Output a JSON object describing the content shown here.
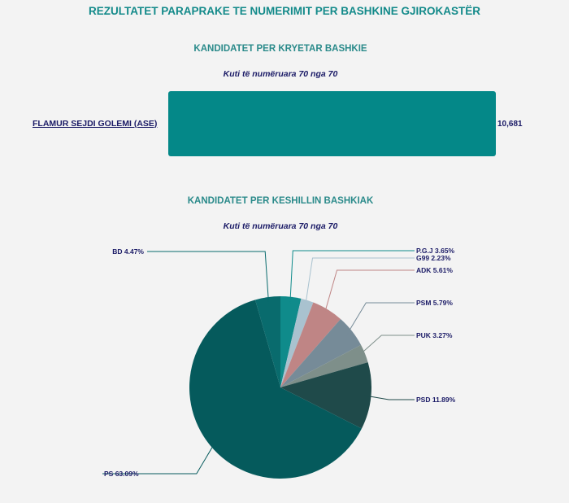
{
  "header": {
    "title": "REZULTATET PARAPRAKE TE NUMERIMIT PER BASHKINE GJIROKASTËR"
  },
  "mayor": {
    "subtitle": "KANDIDATET PER KRYETAR BASHKIE",
    "boxes": "Kuti të numëruara 70 nga 70",
    "bar_color": "#048888"
  },
  "council": {
    "subtitle": "KANDIDATET PER KESHILLIN BASHKIAK",
    "boxes": "Kuti të numëruara 70 nga 70"
  },
  "chart_data": [
    {
      "type": "bar",
      "orientation": "horizontal",
      "title": "KANDIDATET PER KRYETAR BASHKIE",
      "subtitle": "Kuti të numëruara 70 nga 70",
      "categories": [
        "FLAMUR SEJDI GOLEMI (ASE)"
      ],
      "values": [
        10681
      ],
      "value_labels": [
        "10,681"
      ]
    },
    {
      "type": "pie",
      "title": "KANDIDATET PER KESHILLIN BASHKIAK",
      "subtitle": "Kuti të numëruara 70 nga 70",
      "slices": [
        {
          "label": "P.G.J 3.65%",
          "value": 3.65,
          "color": "#0f8b8b"
        },
        {
          "label": "G99 2.23%",
          "value": 2.23,
          "color": "#a9c2cf"
        },
        {
          "label": "ADK 5.61%",
          "value": 5.61,
          "color": "#bf8585"
        },
        {
          "label": "PSM 5.79%",
          "value": 5.79,
          "color": "#768b98"
        },
        {
          "label": "PUK 3.27%",
          "value": 3.27,
          "color": "#7e8f8a"
        },
        {
          "label": "PSD 11.89%",
          "value": 11.89,
          "color": "#1f4a4a"
        },
        {
          "label": "PS 63.09%",
          "value": 63.09,
          "color": "#055a5c"
        },
        {
          "label": "BD 4.47%",
          "value": 4.47,
          "color": "#096b6d"
        }
      ]
    }
  ]
}
